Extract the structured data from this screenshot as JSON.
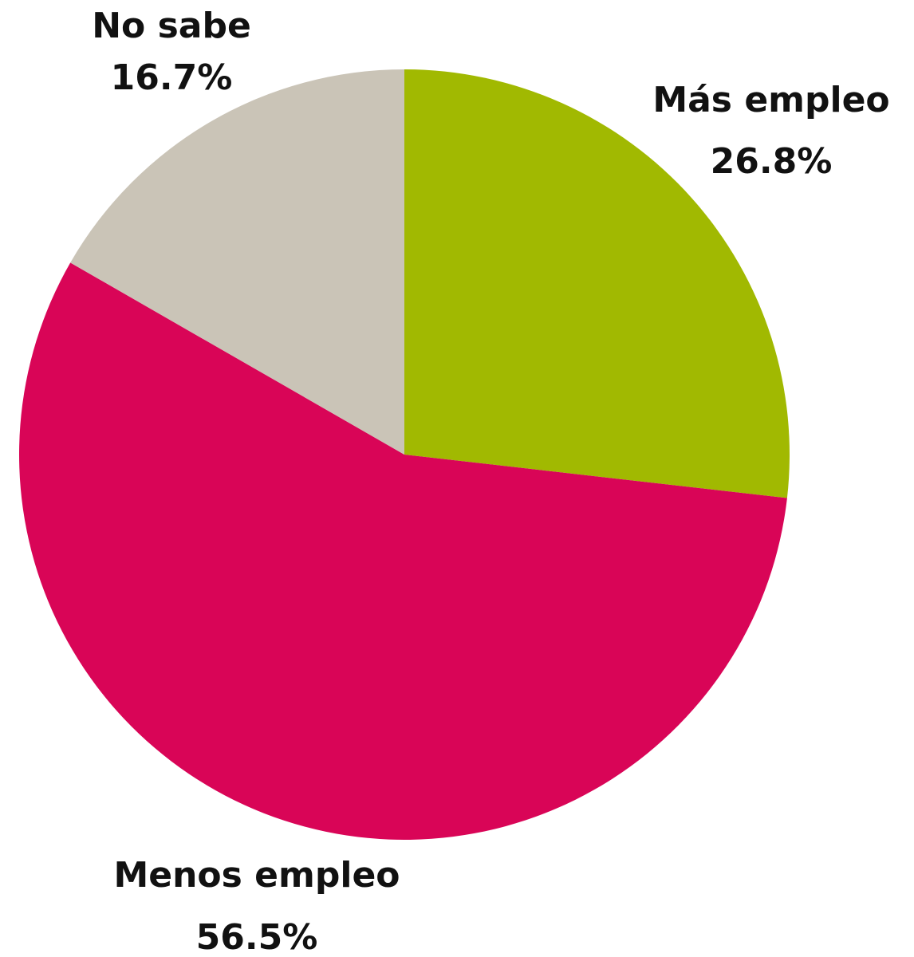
{
  "chart_data": {
    "type": "pie",
    "categories": [
      "Más empleo",
      "Menos empleo",
      "No sabe"
    ],
    "values": [
      26.8,
      56.5,
      16.7
    ],
    "value_labels": [
      "26.8%",
      "56.5%",
      "16.7%"
    ],
    "colors": [
      "#a1b901",
      "#d90557",
      "#cac4b7"
    ]
  }
}
